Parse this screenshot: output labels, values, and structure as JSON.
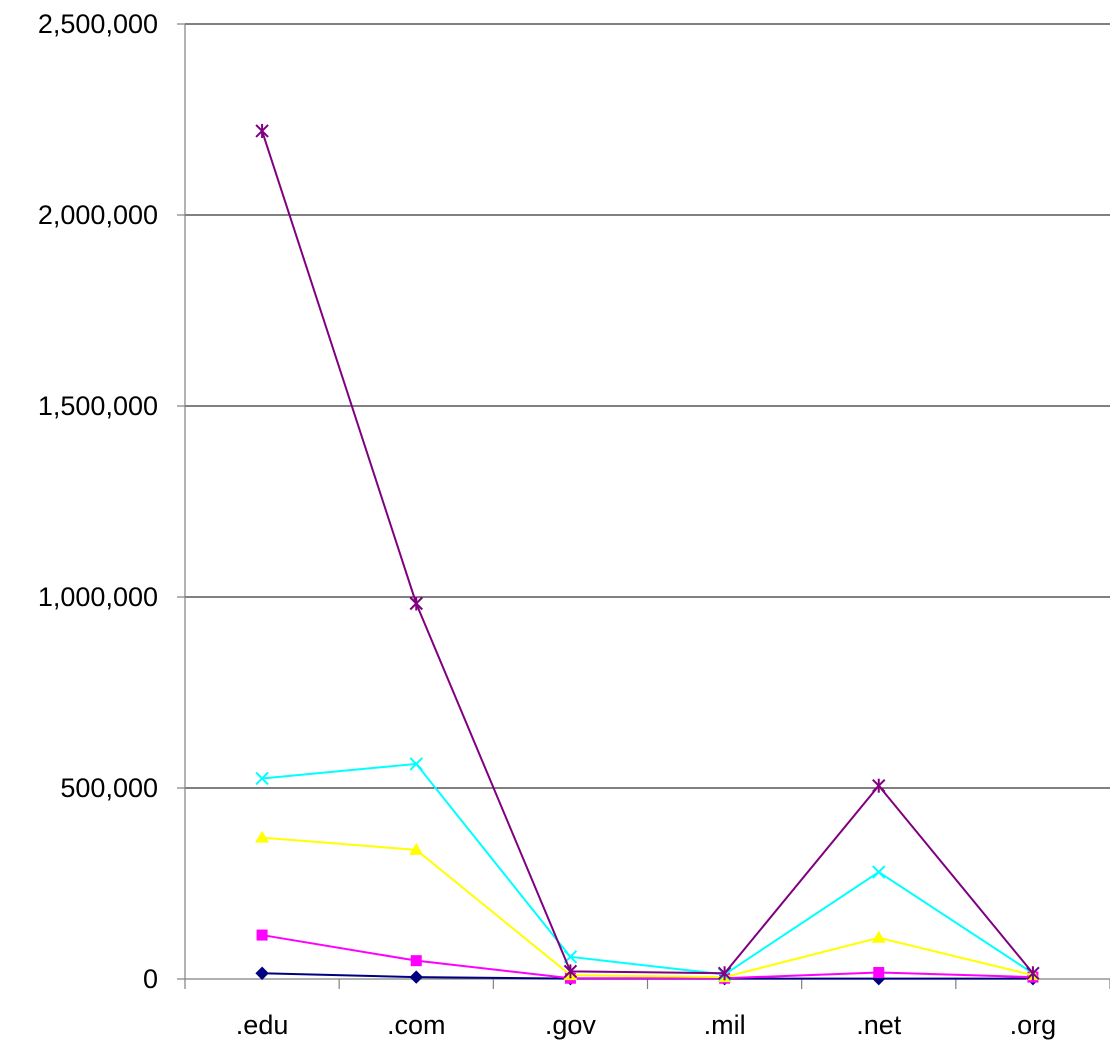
{
  "chart_data": {
    "type": "line",
    "title": "",
    "xlabel": "",
    "ylabel": "",
    "categories": [
      ".edu",
      ".com",
      ".gov",
      ".mil",
      ".net",
      ".org"
    ],
    "ylim": [
      0,
      2500000
    ],
    "yticks": [
      0,
      500000,
      1000000,
      1500000,
      2000000,
      2500000
    ],
    "ytick_labels": [
      "0",
      "500,000",
      "1,000,000",
      "1,500,000",
      "2,000,000",
      "2,500,000"
    ],
    "grid": true,
    "legend": "none",
    "series": [
      {
        "color": "#000080",
        "marker": "diamond",
        "values": [
          15000,
          5000,
          1000,
          1000,
          1000,
          1000
        ]
      },
      {
        "color": "#FF00FF",
        "marker": "square",
        "values": [
          115000,
          48000,
          2000,
          2000,
          17000,
          5000
        ]
      },
      {
        "color": "#FFFF00",
        "marker": "triangle",
        "values": [
          370000,
          338000,
          10000,
          5000,
          108000,
          10000
        ]
      },
      {
        "color": "#00FFFF",
        "marker": "x",
        "values": [
          525000,
          563000,
          58000,
          12000,
          280000,
          15000
        ]
      },
      {
        "color": "#800080",
        "marker": "star",
        "values": [
          2220000,
          983000,
          20000,
          15000,
          506000,
          15000
        ]
      }
    ]
  }
}
